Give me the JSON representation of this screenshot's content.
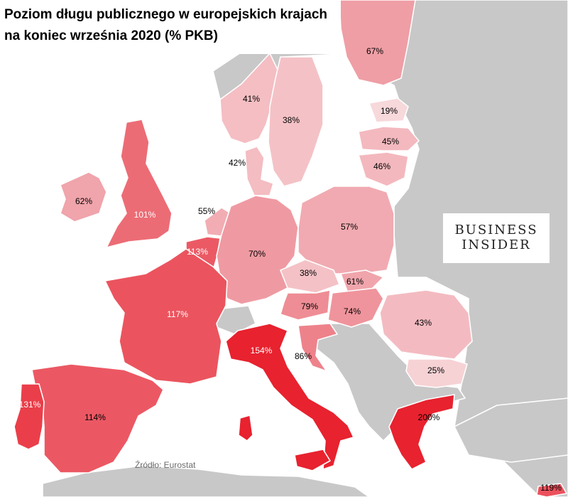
{
  "title": "Poziom długu publicznego w europejskich krajach na koniec września 2020 (% PKB)",
  "brand": {
    "line1": "BUSINESS",
    "line2": "INSIDER"
  },
  "source": "Źródło: Eurostat",
  "colors": {
    "background_sea": "#ffffff",
    "non_data_land": "#c8c8c8",
    "borders": "#ffffff",
    "scale_low": "#f7d8db",
    "scale_mid": "#ef9aa2",
    "scale_high": "#e8222f"
  },
  "chart_data": {
    "type": "choropleth",
    "unit": "% PKB",
    "regions": [
      {
        "id": "finland",
        "value": 67,
        "label": "67%"
      },
      {
        "id": "norway",
        "value": 41,
        "label": "41%"
      },
      {
        "id": "sweden",
        "value": 38,
        "label": "38%"
      },
      {
        "id": "estonia",
        "value": 19,
        "label": "19%"
      },
      {
        "id": "latvia",
        "value": 45,
        "label": "45%"
      },
      {
        "id": "lithuania",
        "value": 46,
        "label": "46%"
      },
      {
        "id": "denmark",
        "value": 42,
        "label": "42%"
      },
      {
        "id": "ireland",
        "value": 62,
        "label": "62%"
      },
      {
        "id": "uk",
        "value": 101,
        "label": "101%"
      },
      {
        "id": "netherlands",
        "value": 55,
        "label": "55%"
      },
      {
        "id": "belgium",
        "value": 113,
        "label": "113%"
      },
      {
        "id": "germany",
        "value": 70,
        "label": "70%"
      },
      {
        "id": "poland",
        "value": 57,
        "label": "57%"
      },
      {
        "id": "czechia",
        "value": 38,
        "label": "38%"
      },
      {
        "id": "slovakia",
        "value": 61,
        "label": "61%"
      },
      {
        "id": "austria",
        "value": 79,
        "label": "79%"
      },
      {
        "id": "hungary",
        "value": 74,
        "label": "74%"
      },
      {
        "id": "romania",
        "value": 43,
        "label": "43%"
      },
      {
        "id": "bulgaria",
        "value": 25,
        "label": "25%"
      },
      {
        "id": "france",
        "value": 117,
        "label": "117%"
      },
      {
        "id": "italy",
        "value": 154,
        "label": "154%"
      },
      {
        "id": "croatia",
        "value": 86,
        "label": "86%"
      },
      {
        "id": "spain",
        "value": 114,
        "label": "114%"
      },
      {
        "id": "portugal",
        "value": 131,
        "label": "131%"
      },
      {
        "id": "greece",
        "value": 200,
        "label": "200%"
      },
      {
        "id": "cyprus",
        "value": 119,
        "label": "119%"
      }
    ]
  }
}
